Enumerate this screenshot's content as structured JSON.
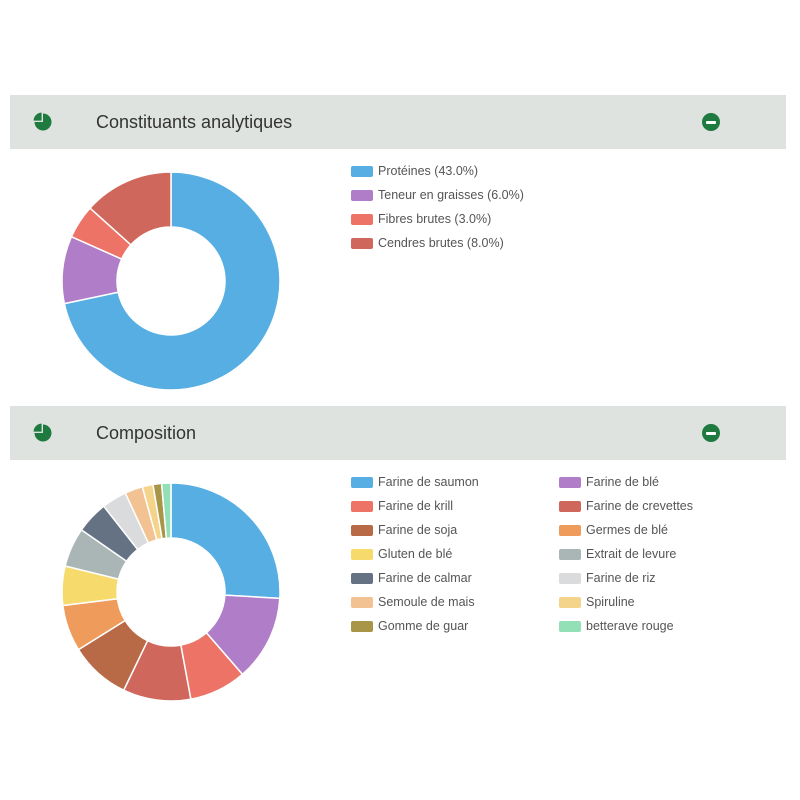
{
  "panels": [
    {
      "title": "Constituants analytiques",
      "header_icon": "pie-chart-icon",
      "collapse_icon": "minus-circle-icon",
      "accent_color": "#1e7a3f"
    },
    {
      "title": "Composition",
      "header_icon": "pie-chart-icon",
      "collapse_icon": "minus-circle-icon",
      "accent_color": "#1e7a3f"
    }
  ],
  "chart_data": [
    {
      "type": "pie",
      "donut": true,
      "legend_position": "right",
      "categories": [
        "Protéines (43.0%)",
        "Teneur en graisses (6.0%)",
        "Fibres brutes (3.0%)",
        "Cendres brutes (8.0%)"
      ],
      "values": [
        43.0,
        6.0,
        3.0,
        8.0
      ],
      "colors": [
        "#56aee3",
        "#b07dc9",
        "#ee7367",
        "#d0675c"
      ]
    },
    {
      "type": "pie",
      "donut": true,
      "legend_position": "right",
      "categories": [
        "Farine de saumon",
        "Farine de blé",
        "Farine de krill",
        "Farine de crevettes",
        "Farine de soja",
        "Germes de blé",
        "Gluten de blé",
        "Extrait de levure",
        "Farine de calmar",
        "Farine de riz",
        "Semoule de mais",
        "Spiruline",
        "Gomme de guar",
        "betterave rouge"
      ],
      "values": [
        24.5,
        12.0,
        8.0,
        9.5,
        8.5,
        6.5,
        5.5,
        5.5,
        4.5,
        3.5,
        2.5,
        1.5,
        1.2,
        1.3
      ],
      "colors": [
        "#56aee3",
        "#b07dc9",
        "#ee7367",
        "#d0675c",
        "#b86a47",
        "#ee9b5b",
        "#f6da6c",
        "#a9b6b5",
        "#647283",
        "#d9dbdc",
        "#f3c293",
        "#f4d48a",
        "#a89548",
        "#93e0b6"
      ]
    }
  ]
}
